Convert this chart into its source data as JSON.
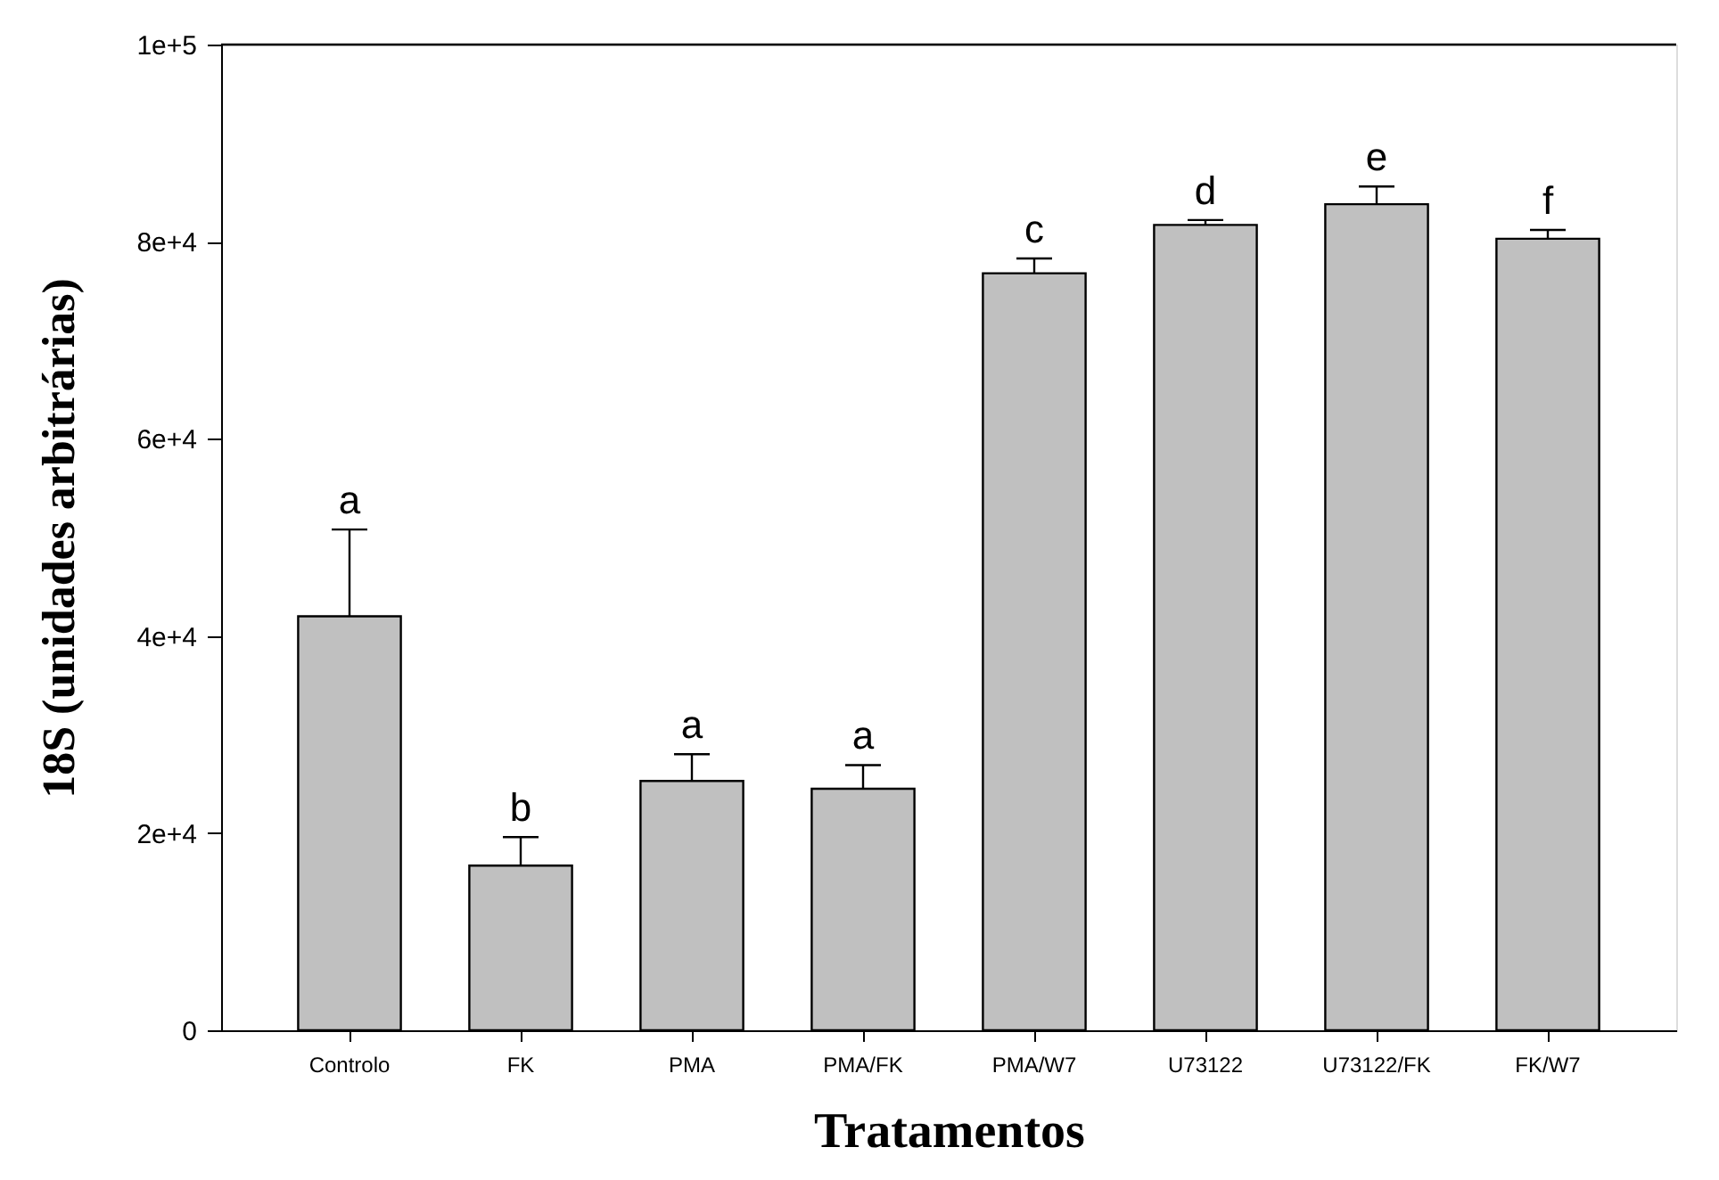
{
  "chart_data": {
    "type": "bar",
    "xlabel": "Tratamentos",
    "ylabel": "18S (unidades arbitrárias)",
    "categories": [
      "Controlo",
      "FK",
      "PMA",
      "PMA/FK",
      "PMA/W7",
      "U73122",
      "U73122/FK",
      "FK/W7"
    ],
    "values": [
      42000,
      16700,
      25300,
      24500,
      76800,
      81700,
      83800,
      80300
    ],
    "errors": [
      [
        42000,
        50800
      ],
      [
        16700,
        19600
      ],
      [
        25300,
        28000
      ],
      [
        24500,
        26900
      ],
      [
        76800,
        78300
      ],
      [
        81700,
        82200
      ],
      [
        83800,
        85600
      ],
      [
        80300,
        81200
      ]
    ],
    "color": "#c0c0c0",
    "ylim": [
      0,
      100000
    ],
    "yticks": [
      0,
      {
        "value": 20000,
        "label": "2e+4"
      },
      {
        "value": 40000,
        "label": "4e+4"
      },
      {
        "value": 60000,
        "label": "6e+4"
      },
      {
        "value": 80000,
        "label": "8e+4"
      },
      {
        "value": 100000,
        "label": "1e+5"
      }
    ],
    "grid": false,
    "legend": false,
    "annotations": [
      "a",
      "b",
      "a",
      "a",
      "c",
      "d",
      "e",
      "f"
    ]
  }
}
